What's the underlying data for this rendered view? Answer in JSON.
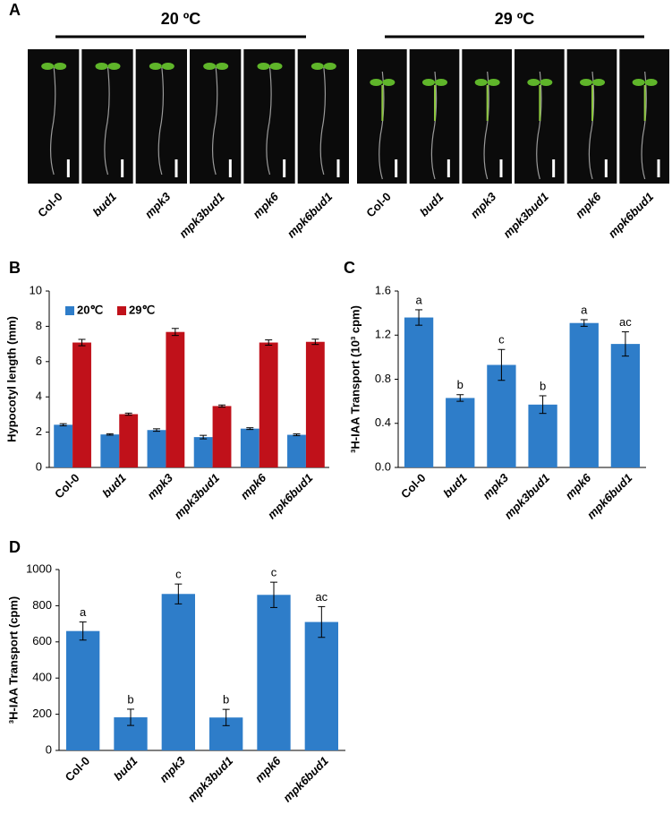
{
  "panel_a": {
    "panel": "A",
    "groups": [
      {
        "title": "20 ºC",
        "labels": [
          "Col-0",
          "bud1",
          "mpk3",
          "mpk3bud1",
          "mpk6",
          "mpk6bud1"
        ]
      },
      {
        "title": "29 ºC",
        "labels": [
          "Col-0",
          "bud1",
          "mpk3",
          "mpk3bud1",
          "mpk6",
          "mpk6bud1"
        ]
      }
    ]
  },
  "chart_data": [
    {
      "type": "bar",
      "panel": "B",
      "y_label": "Hypocotyl length (mm)",
      "categories": [
        "Col-0",
        "bud1",
        "mpk3",
        "mpk3bud1",
        "mpk6",
        "mpk6bud1"
      ],
      "series": [
        {
          "name": "20℃",
          "color": "#2e7dc9",
          "values": [
            2.42,
            1.87,
            2.12,
            1.72,
            2.2,
            1.85
          ],
          "errors": [
            0.06,
            0.04,
            0.07,
            0.1,
            0.05,
            0.05
          ]
        },
        {
          "name": "29℃",
          "color": "#c0111a",
          "values": [
            7.08,
            3.02,
            7.68,
            3.48,
            7.08,
            7.12
          ],
          "errors": [
            0.18,
            0.06,
            0.2,
            0.06,
            0.15,
            0.15
          ]
        }
      ],
      "ylim": [
        0,
        10
      ],
      "yticks": [
        0,
        2,
        4,
        6,
        8,
        10
      ],
      "legend": "top-left"
    },
    {
      "type": "bar",
      "panel": "C",
      "y_label": "³H-IAA Transport (10³ cpm)",
      "categories": [
        "Col-0",
        "bud1",
        "mpk3",
        "mpk3bud1",
        "mpk6",
        "mpk6bud1"
      ],
      "color": "#2e7dc9",
      "values": [
        1.36,
        0.63,
        0.93,
        0.57,
        1.31,
        1.12
      ],
      "errors": [
        0.07,
        0.03,
        0.14,
        0.08,
        0.03,
        0.11
      ],
      "letters": [
        "a",
        "b",
        "c",
        "b",
        "a",
        "ac"
      ],
      "ylim": [
        0,
        1.6
      ],
      "yticks": [
        {
          "value": 0,
          "label": "0.0"
        },
        0.4,
        0.8,
        1.2,
        1.6
      ]
    },
    {
      "type": "bar",
      "panel": "D",
      "y_label": "³H-IAA Transport (cpm)",
      "categories": [
        "Col-0",
        "bud1",
        "mpk3",
        "mpk3bud1",
        "mpk6",
        "mpk6bud1"
      ],
      "color": "#2e7dc9",
      "values": [
        660,
        183,
        865,
        182,
        860,
        710
      ],
      "errors": [
        50,
        45,
        55,
        45,
        70,
        85
      ],
      "letters": [
        "a",
        "b",
        "c",
        "b",
        "c",
        "ac"
      ],
      "ylim": [
        0,
        1000
      ],
      "yticks": [
        0,
        200,
        400,
        600,
        800,
        1000
      ]
    }
  ]
}
